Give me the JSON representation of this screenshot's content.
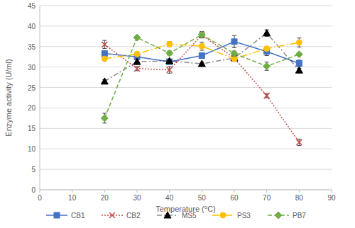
{
  "chart_data": {
    "type": "line",
    "x_label": "Temperature (⁰C)",
    "y_label": "Enzyme activity (U/ml)",
    "x": [
      20,
      30,
      40,
      50,
      60,
      70,
      80
    ],
    "xlim": [
      0,
      90
    ],
    "xticks": [
      0,
      10,
      20,
      30,
      40,
      50,
      60,
      70,
      80,
      90
    ],
    "ylim": [
      0,
      45
    ],
    "yticks": [
      0,
      5,
      10,
      15,
      20,
      25,
      30,
      35,
      40,
      45
    ],
    "grid": true,
    "legend": "bottom",
    "series": [
      {
        "name": "CB1",
        "color": "#4472c4",
        "marker": "square",
        "line_style": "solid",
        "values": [
          33.3,
          32.5,
          31.3,
          32.8,
          36.2,
          33.8,
          30.9
        ],
        "errors": [
          0.5,
          0.6,
          0.5,
          0.6,
          1.5,
          1,
          0.8
        ]
      },
      {
        "name": "CB2",
        "color": "#c0504d",
        "marker": "x",
        "line_style": "dotted",
        "values": [
          35.5,
          29.6,
          29.3,
          37.8,
          32.2,
          23,
          11.6
        ],
        "errors": [
          1,
          0.5,
          0.8,
          0.6,
          0.8,
          0.5,
          0.8
        ]
      },
      {
        "name": "MS5",
        "color": "#000000",
        "marker": "triangle",
        "line_style": "dash-dot",
        "values": [
          26.5,
          31.3,
          31.5,
          30.8,
          32.2,
          38.3,
          29.2
        ],
        "errors": [
          0.4,
          0.4,
          0.4,
          0.4,
          0.6,
          0.8,
          0.5
        ]
      },
      {
        "name": "PS3",
        "color": "#ffc000",
        "marker": "circle",
        "line_style": "long-dash-dot",
        "values": [
          32,
          33.2,
          35.6,
          35.1,
          32,
          34.5,
          36
        ],
        "errors": [
          0.4,
          0.4,
          0.6,
          1,
          0.6,
          0.5,
          1.1
        ]
      },
      {
        "name": "PB7",
        "color": "#70ad47",
        "marker": "diamond",
        "line_style": "dashed",
        "values": [
          17.5,
          37.2,
          33.4,
          37.9,
          33.3,
          30.2,
          33.1
        ],
        "errors": [
          1.2,
          0.4,
          0.5,
          0.8,
          0.6,
          1,
          0.3
        ]
      }
    ]
  }
}
